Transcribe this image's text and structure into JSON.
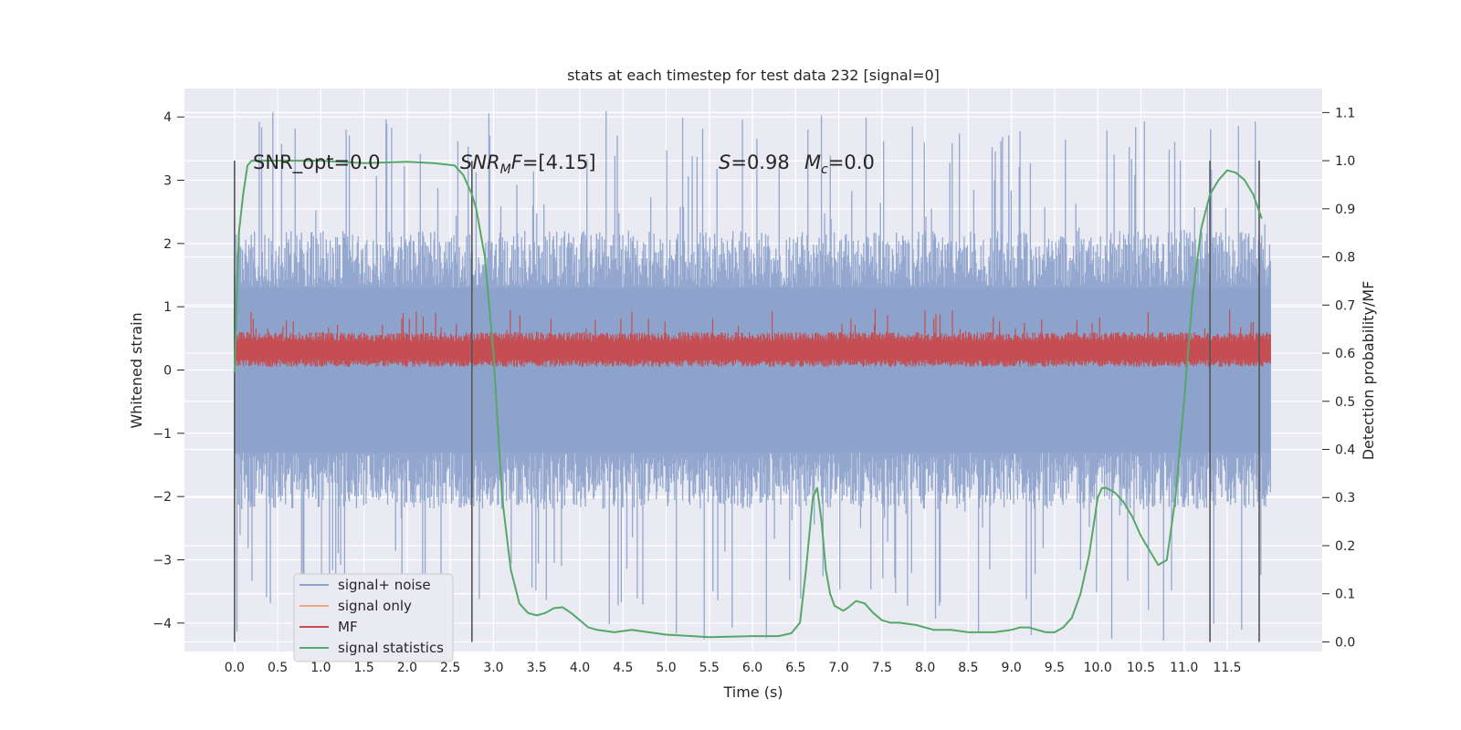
{
  "chart_data": {
    "type": "line",
    "title": "stats at each timestep for test data 232 [signal=0]",
    "xlabel": "Time (s)",
    "ylabel": "Whitened strain",
    "y2label": "Detection probability/MF",
    "xlim": [
      -0.58,
      12.6
    ],
    "ylim": [
      -4.45,
      4.45
    ],
    "y2lim": [
      -0.02,
      1.15
    ],
    "xticks": [
      "0.0",
      "0.5",
      "1.0",
      "1.5",
      "2.0",
      "2.5",
      "3.0",
      "3.5",
      "4.0",
      "4.5",
      "5.0",
      "5.5",
      "6.0",
      "6.5",
      "7.0",
      "7.5",
      "8.0",
      "8.5",
      "9.0",
      "9.5",
      "10.0",
      "10.5",
      "11.0",
      "11.5"
    ],
    "yticks": [
      "4",
      "3",
      "2",
      "1",
      "0",
      "−1",
      "−2",
      "−3",
      "−4"
    ],
    "y2ticks": [
      "1.1",
      "1.0",
      "0.9",
      "0.8",
      "0.7",
      "0.6",
      "0.5",
      "0.4",
      "0.3",
      "0.2",
      "0.1",
      "0.0"
    ],
    "grid": true,
    "legend_position": "lower-left",
    "annotations": {
      "snr_opt": "SNR_opt=0.0",
      "snr_mf": "=[4.15]",
      "s_val": "=0.98",
      "mc_val": "=0.0"
    },
    "series": [
      {
        "name": "signal+ noise",
        "color": "#8ea3cc",
        "band": {
          "x0": 0.0,
          "x1": 12.0,
          "typical_min": -1.3,
          "typical_max": 1.3,
          "extreme_min": -4.3,
          "extreme_max": 4.1
        }
      },
      {
        "name": "signal only",
        "color": "#eeaa88",
        "values": []
      },
      {
        "name": "MF",
        "color": "#c44e52",
        "band": {
          "x0": 0.0,
          "x1": 12.0,
          "low": 0.05,
          "high": 0.6,
          "peak_max": 0.97
        }
      },
      {
        "name": "signal statistics",
        "color": "#55a868",
        "x": [
          0.0,
          0.05,
          0.1,
          0.15,
          0.2,
          0.3,
          0.5,
          1.0,
          1.5,
          2.0,
          2.3,
          2.45,
          2.55,
          2.65,
          2.75,
          2.8,
          2.9,
          3.0,
          3.1,
          3.2,
          3.3,
          3.4,
          3.5,
          3.6,
          3.7,
          3.8,
          3.9,
          4.0,
          4.1,
          4.2,
          4.4,
          4.6,
          4.8,
          5.0,
          5.5,
          6.0,
          6.3,
          6.45,
          6.55,
          6.62,
          6.7,
          6.75,
          6.8,
          6.85,
          6.9,
          6.95,
          7.0,
          7.05,
          7.1,
          7.2,
          7.3,
          7.4,
          7.5,
          7.6,
          7.7,
          7.9,
          8.1,
          8.3,
          8.5,
          8.8,
          9.0,
          9.1,
          9.2,
          9.3,
          9.4,
          9.5,
          9.6,
          9.7,
          9.8,
          9.9,
          10.0,
          10.05,
          10.1,
          10.2,
          10.3,
          10.4,
          10.5,
          10.6,
          10.7,
          10.8,
          10.9,
          11.0,
          11.1,
          11.2,
          11.3,
          11.4,
          11.5,
          11.6,
          11.7,
          11.8,
          11.9
        ],
        "y": [
          0.56,
          0.85,
          0.93,
          0.99,
          1.0,
          1.0,
          1.0,
          1.0,
          0.995,
          0.998,
          0.995,
          0.992,
          0.99,
          0.97,
          0.93,
          0.9,
          0.8,
          0.6,
          0.3,
          0.15,
          0.08,
          0.06,
          0.055,
          0.06,
          0.07,
          0.072,
          0.06,
          0.045,
          0.03,
          0.025,
          0.02,
          0.025,
          0.02,
          0.015,
          0.01,
          0.012,
          0.012,
          0.018,
          0.04,
          0.15,
          0.3,
          0.32,
          0.25,
          0.15,
          0.1,
          0.075,
          0.07,
          0.065,
          0.07,
          0.085,
          0.08,
          0.06,
          0.045,
          0.04,
          0.04,
          0.035,
          0.025,
          0.025,
          0.02,
          0.02,
          0.025,
          0.03,
          0.03,
          0.025,
          0.02,
          0.02,
          0.03,
          0.05,
          0.1,
          0.18,
          0.3,
          0.32,
          0.32,
          0.31,
          0.29,
          0.26,
          0.22,
          0.19,
          0.16,
          0.17,
          0.3,
          0.5,
          0.72,
          0.86,
          0.93,
          0.96,
          0.98,
          0.975,
          0.96,
          0.93,
          0.88
        ]
      }
    ],
    "vlines": [
      0.0,
      2.75,
      11.3,
      11.87
    ]
  }
}
